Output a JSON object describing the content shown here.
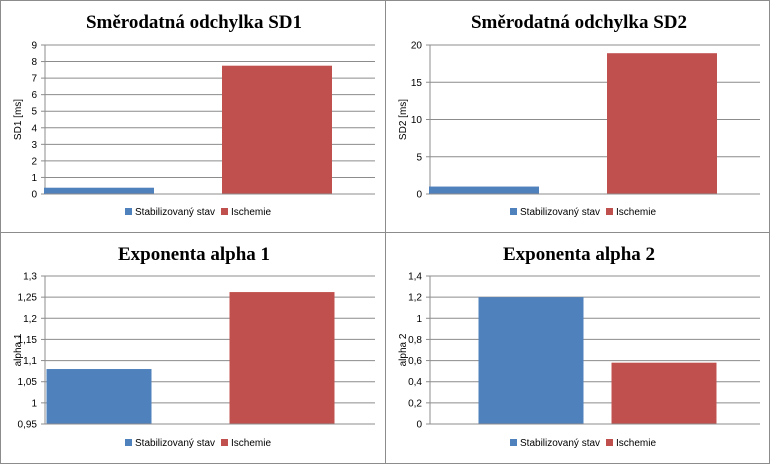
{
  "chart_data": [
    {
      "type": "bar",
      "title": "Směrodatná odchylka SD1",
      "ylabel": "SD1 [ms]",
      "categories": [
        "Stabilizovaný stav",
        "Ischemie"
      ],
      "values": [
        0.38,
        7.75
      ],
      "colors": [
        "#4f81bd",
        "#c0504d"
      ],
      "ylim": [
        0,
        9
      ],
      "yticks": [
        0,
        1,
        2,
        3,
        4,
        5,
        6,
        7,
        8,
        9
      ],
      "ytick_labels": [
        "0",
        "1",
        "2",
        "3",
        "4",
        "5",
        "6",
        "7",
        "8",
        "9"
      ],
      "grid": true,
      "legend": "bottom"
    },
    {
      "type": "bar",
      "title": "Směrodatná odchylka SD2",
      "ylabel": "SD2 [ms]",
      "categories": [
        "Stabilizovaný stav",
        "Ischemie"
      ],
      "values": [
        1.0,
        18.9
      ],
      "colors": [
        "#4f81bd",
        "#c0504d"
      ],
      "ylim": [
        0,
        20
      ],
      "yticks": [
        0,
        5,
        10,
        15,
        20
      ],
      "ytick_labels": [
        "0",
        "5",
        "10",
        "15",
        "20"
      ],
      "grid": true,
      "legend": "bottom"
    },
    {
      "type": "bar",
      "title": "Exponenta alpha 1",
      "ylabel": "alpha 1",
      "categories": [
        "Stabilizovaný stav",
        "Ischemie"
      ],
      "values": [
        1.08,
        1.262
      ],
      "colors": [
        "#4f81bd",
        "#c0504d"
      ],
      "ylim": [
        0.95,
        1.3
      ],
      "yticks": [
        0.95,
        1.0,
        1.05,
        1.1,
        1.15,
        1.2,
        1.25,
        1.3
      ],
      "ytick_labels": [
        "0,95",
        "1",
        "1,05",
        "1,1",
        "1,15",
        "1,2",
        "1,25",
        "1,3"
      ],
      "grid": true,
      "legend": "bottom"
    },
    {
      "type": "bar",
      "title": "Exponenta alpha 2",
      "ylabel": "alpha 2",
      "categories": [
        "Stabilizovaný stav",
        "Ischemie"
      ],
      "values": [
        1.2,
        0.58
      ],
      "colors": [
        "#4f81bd",
        "#c0504d"
      ],
      "ylim": [
        0,
        1.4
      ],
      "yticks": [
        0,
        0.2,
        0.4,
        0.6,
        0.8,
        1.0,
        1.2,
        1.4
      ],
      "ytick_labels": [
        "0",
        "0,2",
        "0,4",
        "0,6",
        "0,8",
        "1",
        "1,2",
        "1,4"
      ],
      "grid": true,
      "legend": "bottom"
    }
  ]
}
